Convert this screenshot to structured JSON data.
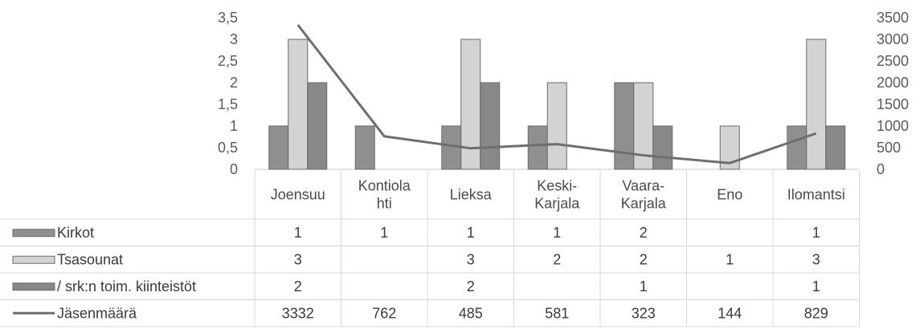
{
  "chart_data": {
    "type": "bar",
    "categories": [
      [
        "Joensuu"
      ],
      [
        "Kontiola",
        "hti"
      ],
      [
        "Lieksa"
      ],
      [
        "Keski-",
        "Karjala"
      ],
      [
        "Vaara-",
        "Karjala"
      ],
      [
        "Eno"
      ],
      [
        "Ilomantsi"
      ]
    ],
    "left_axis": {
      "ylim": [
        0,
        3.5
      ],
      "ticks": [
        "0",
        "0,5",
        "1",
        "1,5",
        "2",
        "2,5",
        "3",
        "3,5"
      ],
      "tick_values": [
        0,
        0.5,
        1,
        1.5,
        2,
        2.5,
        3,
        3.5
      ]
    },
    "right_axis": {
      "ylim": [
        0,
        3500
      ],
      "ticks": [
        "0",
        "500",
        "1000",
        "1500",
        "2000",
        "2500",
        "3000",
        "3500"
      ],
      "tick_values": [
        0,
        500,
        1000,
        1500,
        2000,
        2500,
        3000,
        3500
      ]
    },
    "series": [
      {
        "name": "Kirkot",
        "type": "bar",
        "axis": "left",
        "color": "#8f8f8f",
        "values": [
          1,
          1,
          1,
          1,
          2,
          null,
          1
        ],
        "labels": [
          "1",
          "1",
          "1",
          "1",
          "2",
          "",
          "1"
        ]
      },
      {
        "name": "Tsasounat",
        "type": "bar",
        "axis": "left",
        "color": "#d3d3d3",
        "values": [
          3,
          null,
          3,
          2,
          2,
          1,
          3
        ],
        "labels": [
          "3",
          "",
          "3",
          "2",
          "2",
          "1",
          "3"
        ]
      },
      {
        "name": "/ srk:n toim. kiinteistöt",
        "type": "bar",
        "axis": "left",
        "color": "#888888",
        "values": [
          2,
          null,
          2,
          null,
          1,
          null,
          1
        ],
        "labels": [
          "2",
          "",
          "2",
          "",
          "1",
          "",
          "1"
        ]
      },
      {
        "name": "Jäsenmäärä",
        "type": "line",
        "axis": "right",
        "color": "#6e6e6e",
        "values": [
          3332,
          762,
          485,
          581,
          323,
          144,
          829
        ],
        "labels": [
          "3332",
          "762",
          "485",
          "581",
          "323",
          "144",
          "829"
        ]
      }
    ],
    "grid": false,
    "legend": "data-table"
  }
}
